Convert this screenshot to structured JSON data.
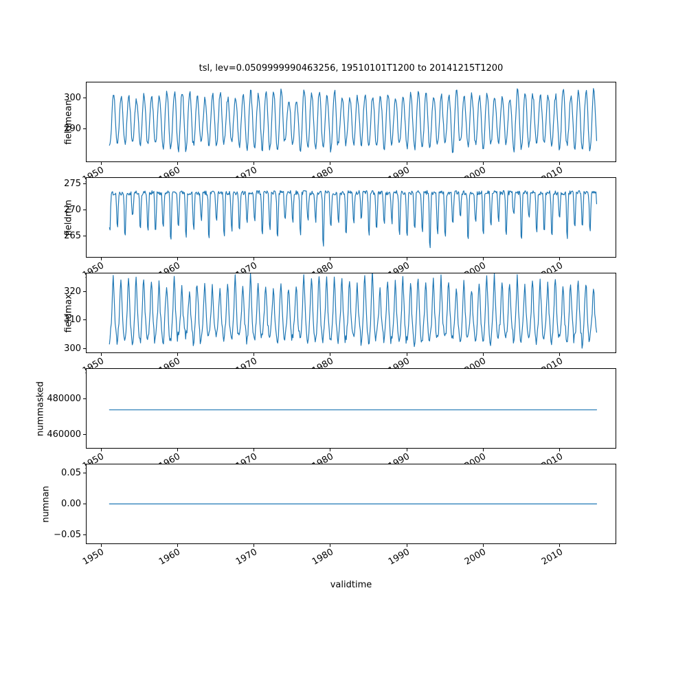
{
  "chart_data": {
    "type": "line",
    "title": "tsl, lev=0.0509999990463256, 19510101T1200 to 20141215T1200",
    "xlabel": "validtime",
    "line_color": "#1f77b4",
    "grid": false,
    "legend": "none",
    "x": {
      "start": 1951.0,
      "end": 2014.92,
      "samples_per_year": 12,
      "xlim": [
        1948.0,
        2017.4
      ],
      "ticks": [
        1950,
        1960,
        1970,
        1980,
        1990,
        2000,
        2010
      ],
      "tick_labels": [
        "1950",
        "1960",
        "1970",
        "1980",
        "1990",
        "2000",
        "2010"
      ]
    },
    "subplots": [
      {
        "ylabel": "fieldmean",
        "ylim": [
          279.3,
          305.3
        ],
        "yticks": [
          {
            "value": 300,
            "label": "300"
          },
          {
            "value": 290,
            "label": "290"
          }
        ],
        "series": {
          "kind": "seasonal",
          "mean": 292.8,
          "amp": 8.6,
          "amp_jitter": 1.6,
          "noise": 1.0,
          "peak_month_frac": 0.54,
          "seed": 11
        },
        "summary": "Monthly seasonal cycle oscillating between about 282 and 304 from 1951 to 2014"
      },
      {
        "ylabel": "fieldmin",
        "ylim": [
          260.8,
          276.2
        ],
        "yticks": [
          {
            "value": 275,
            "label": "275"
          },
          {
            "value": 270,
            "label": "270"
          },
          {
            "value": 265,
            "label": "265"
          }
        ],
        "series": {
          "kind": "dip",
          "base": 273.3,
          "top_noise": 0.45,
          "depth_min": 4.5,
          "depth_max": 9.5,
          "dip_center_frac": 0.05,
          "power": 3,
          "deep_years": {
            "28": 11.0,
            "42": 11.4
          },
          "seed": 22
        },
        "summary": "Nearly flat top around 273 with winter dips down to about 263-268, deepest dips near 262"
      },
      {
        "ylabel": "fieldmax",
        "ylim": [
          298.5,
          326.5
        ],
        "yticks": [
          {
            "value": 320,
            "label": "320"
          },
          {
            "value": 310,
            "label": "310"
          },
          {
            "value": 300,
            "label": "300"
          }
        ],
        "series": {
          "kind": "seasonal_spiky",
          "mean": 309.5,
          "amp": 6.5,
          "amp_jitter": 1.8,
          "spike": 5.0,
          "spike_jitter": 4.5,
          "noise": 1.4,
          "peak_month_frac": 0.5,
          "seed": 33
        },
        "summary": "Seasonal oscillation between about 301 and 325 with spiky summer peaks"
      },
      {
        "ylabel": "nummasked",
        "ylim": [
          452300,
          497300
        ],
        "yticks": [
          {
            "value": 480000,
            "label": "480000"
          },
          {
            "value": 460000,
            "label": "460000"
          }
        ],
        "series": {
          "kind": "constant",
          "value": 474000
        },
        "summary": "Constant at approximately 474000 for the whole period"
      },
      {
        "ylabel": "numnan",
        "ylim": [
          -0.0657,
          0.0657
        ],
        "yticks": [
          {
            "value": 0.05,
            "label": "0.05"
          },
          {
            "value": 0.0,
            "label": "0.00"
          },
          {
            "value": -0.05,
            "label": "−0.05"
          }
        ],
        "series": {
          "kind": "constant",
          "value": 0
        },
        "summary": "Constant at 0 for the whole period"
      }
    ]
  }
}
